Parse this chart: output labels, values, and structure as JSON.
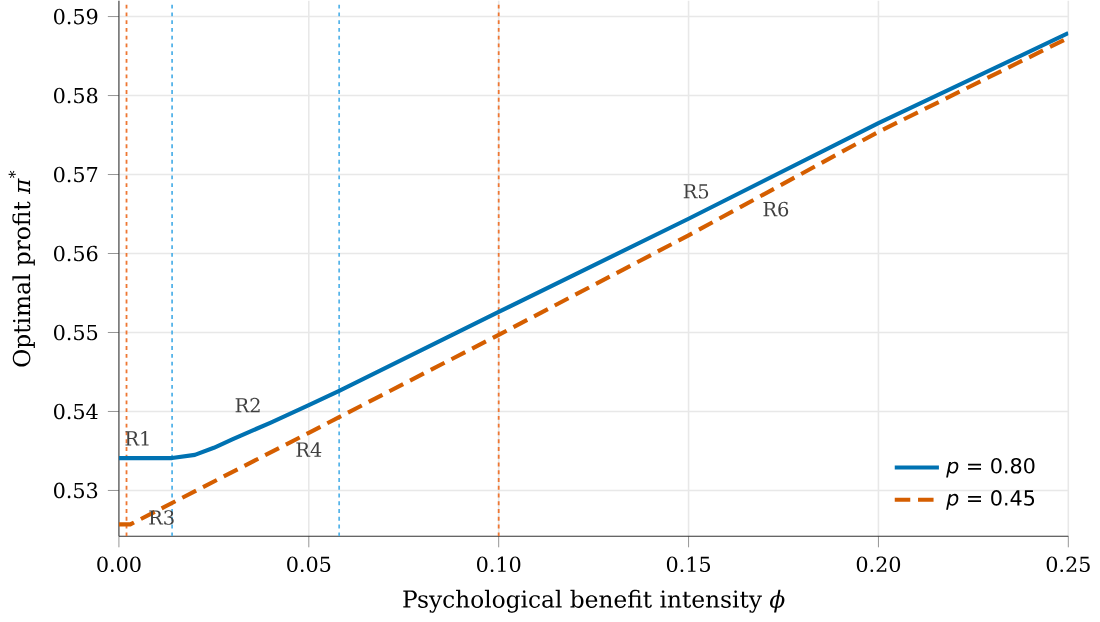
{
  "chart_data": {
    "type": "line",
    "xlabel": "Psychological benefit intensity *ϕ*",
    "ylabel": "Optimal profit *π*$^{*}$",
    "xlim": [
      0,
      0.25
    ],
    "ylim": [
      0.5242,
      0.592
    ],
    "xticks": [
      {
        "value": 0,
        "label": "0.00"
      },
      0.05,
      {
        "value": 0.1,
        "label": "0.10"
      },
      0.15,
      {
        "value": 0.2,
        "label": "0.20"
      },
      0.25
    ],
    "yticks": [
      {
        "value": 0.53,
        "label": "0.53"
      },
      0.54,
      0.55,
      0.56,
      0.57,
      0.58,
      0.59
    ],
    "grid": true,
    "legend": "bottom right",
    "series": [
      {
        "name": "*p* = 0.80",
        "color": "#0072b2",
        "line_style": "solid",
        "x": [
          0,
          0.014,
          0.02,
          0.025,
          0.03,
          0.04,
          0.05,
          0.058,
          0.1,
          0.15,
          0.2,
          0.25
        ],
        "values": [
          0.5341,
          0.5341,
          0.5345,
          0.5354,
          0.5365,
          0.5386,
          0.5408,
          0.5426,
          0.5526,
          0.5644,
          0.5765,
          0.5879
        ]
      },
      {
        "name": "*p* = 0.45",
        "color": "#d55e00",
        "line_style": "dashed",
        "x": [
          0,
          0.003,
          0.05,
          0.1,
          0.15,
          0.2,
          0.25
        ],
        "values": [
          0.5257,
          0.5257,
          0.5373,
          0.5497,
          0.5623,
          0.5754,
          0.5873
        ]
      }
    ],
    "ref_lines": [
      {
        "axis": "x",
        "value": 0.014,
        "color": "#56b4e9",
        "line_style": "dotted"
      },
      {
        "axis": "x",
        "value": 0.058,
        "color": "#56b4e9",
        "line_style": "dotted"
      },
      {
        "axis": "x",
        "value": 0.1,
        "color": "#ee7733",
        "line_style": "dotted"
      },
      {
        "axis": "x",
        "value": 0.002,
        "color": "#ee7733",
        "line_style": "dotted"
      }
    ],
    "annotations": [
      "R1",
      "R2",
      "R3",
      "R4",
      "R5",
      "R6"
    ]
  }
}
